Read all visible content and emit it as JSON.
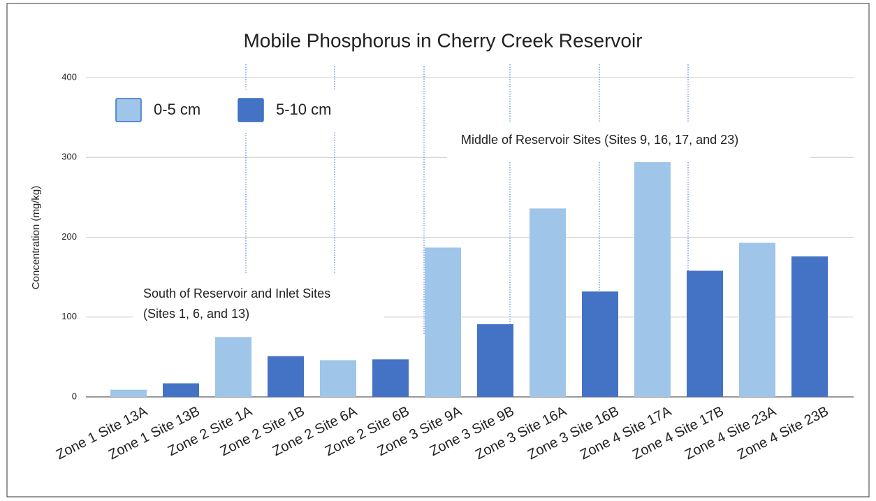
{
  "chart_data": {
    "type": "bar",
    "title": "Mobile Phosphorus in Cherry Creek Reservoir",
    "y_label": "Concentration (mg/kg)",
    "categories": [
      "Zone 1 Site 13A",
      "Zone 1 Site 13B",
      "Zone 2 Site 1A",
      "Zone 2 Site 1B",
      "Zone 2 Site 6A",
      "Zone 2 Site 6B",
      "Zone 3 Site 9A",
      "Zone 3 Site 9B",
      "Zone 3 Site 16A",
      "Zone 3 Site 16B",
      "Zone 4 Site 17A",
      "Zone 4 Site 17B",
      "Zone 4 Site 23A",
      "Zone 4 Site 23B"
    ],
    "series": [
      {
        "name": "0-5 cm",
        "color": "#9fc5e8",
        "values": [
          9,
          null,
          75,
          null,
          46,
          null,
          187,
          null,
          236,
          null,
          294,
          null,
          193,
          null
        ]
      },
      {
        "name": "5-10 cm",
        "color": "#4472c4",
        "values": [
          null,
          17,
          null,
          51,
          null,
          47,
          null,
          91,
          null,
          132,
          null,
          158,
          null,
          176
        ]
      }
    ],
    "ylim": [
      0,
      400
    ],
    "yticks": [
      0,
      100,
      200,
      300,
      400
    ],
    "grid": true,
    "annotations": [
      "Middle of Reservoir Sites (Sites 9, 16, 17, and 23)",
      "South of Reservoir and Inlet Sites",
      "(Sites 1, 6, and 13)"
    ]
  }
}
